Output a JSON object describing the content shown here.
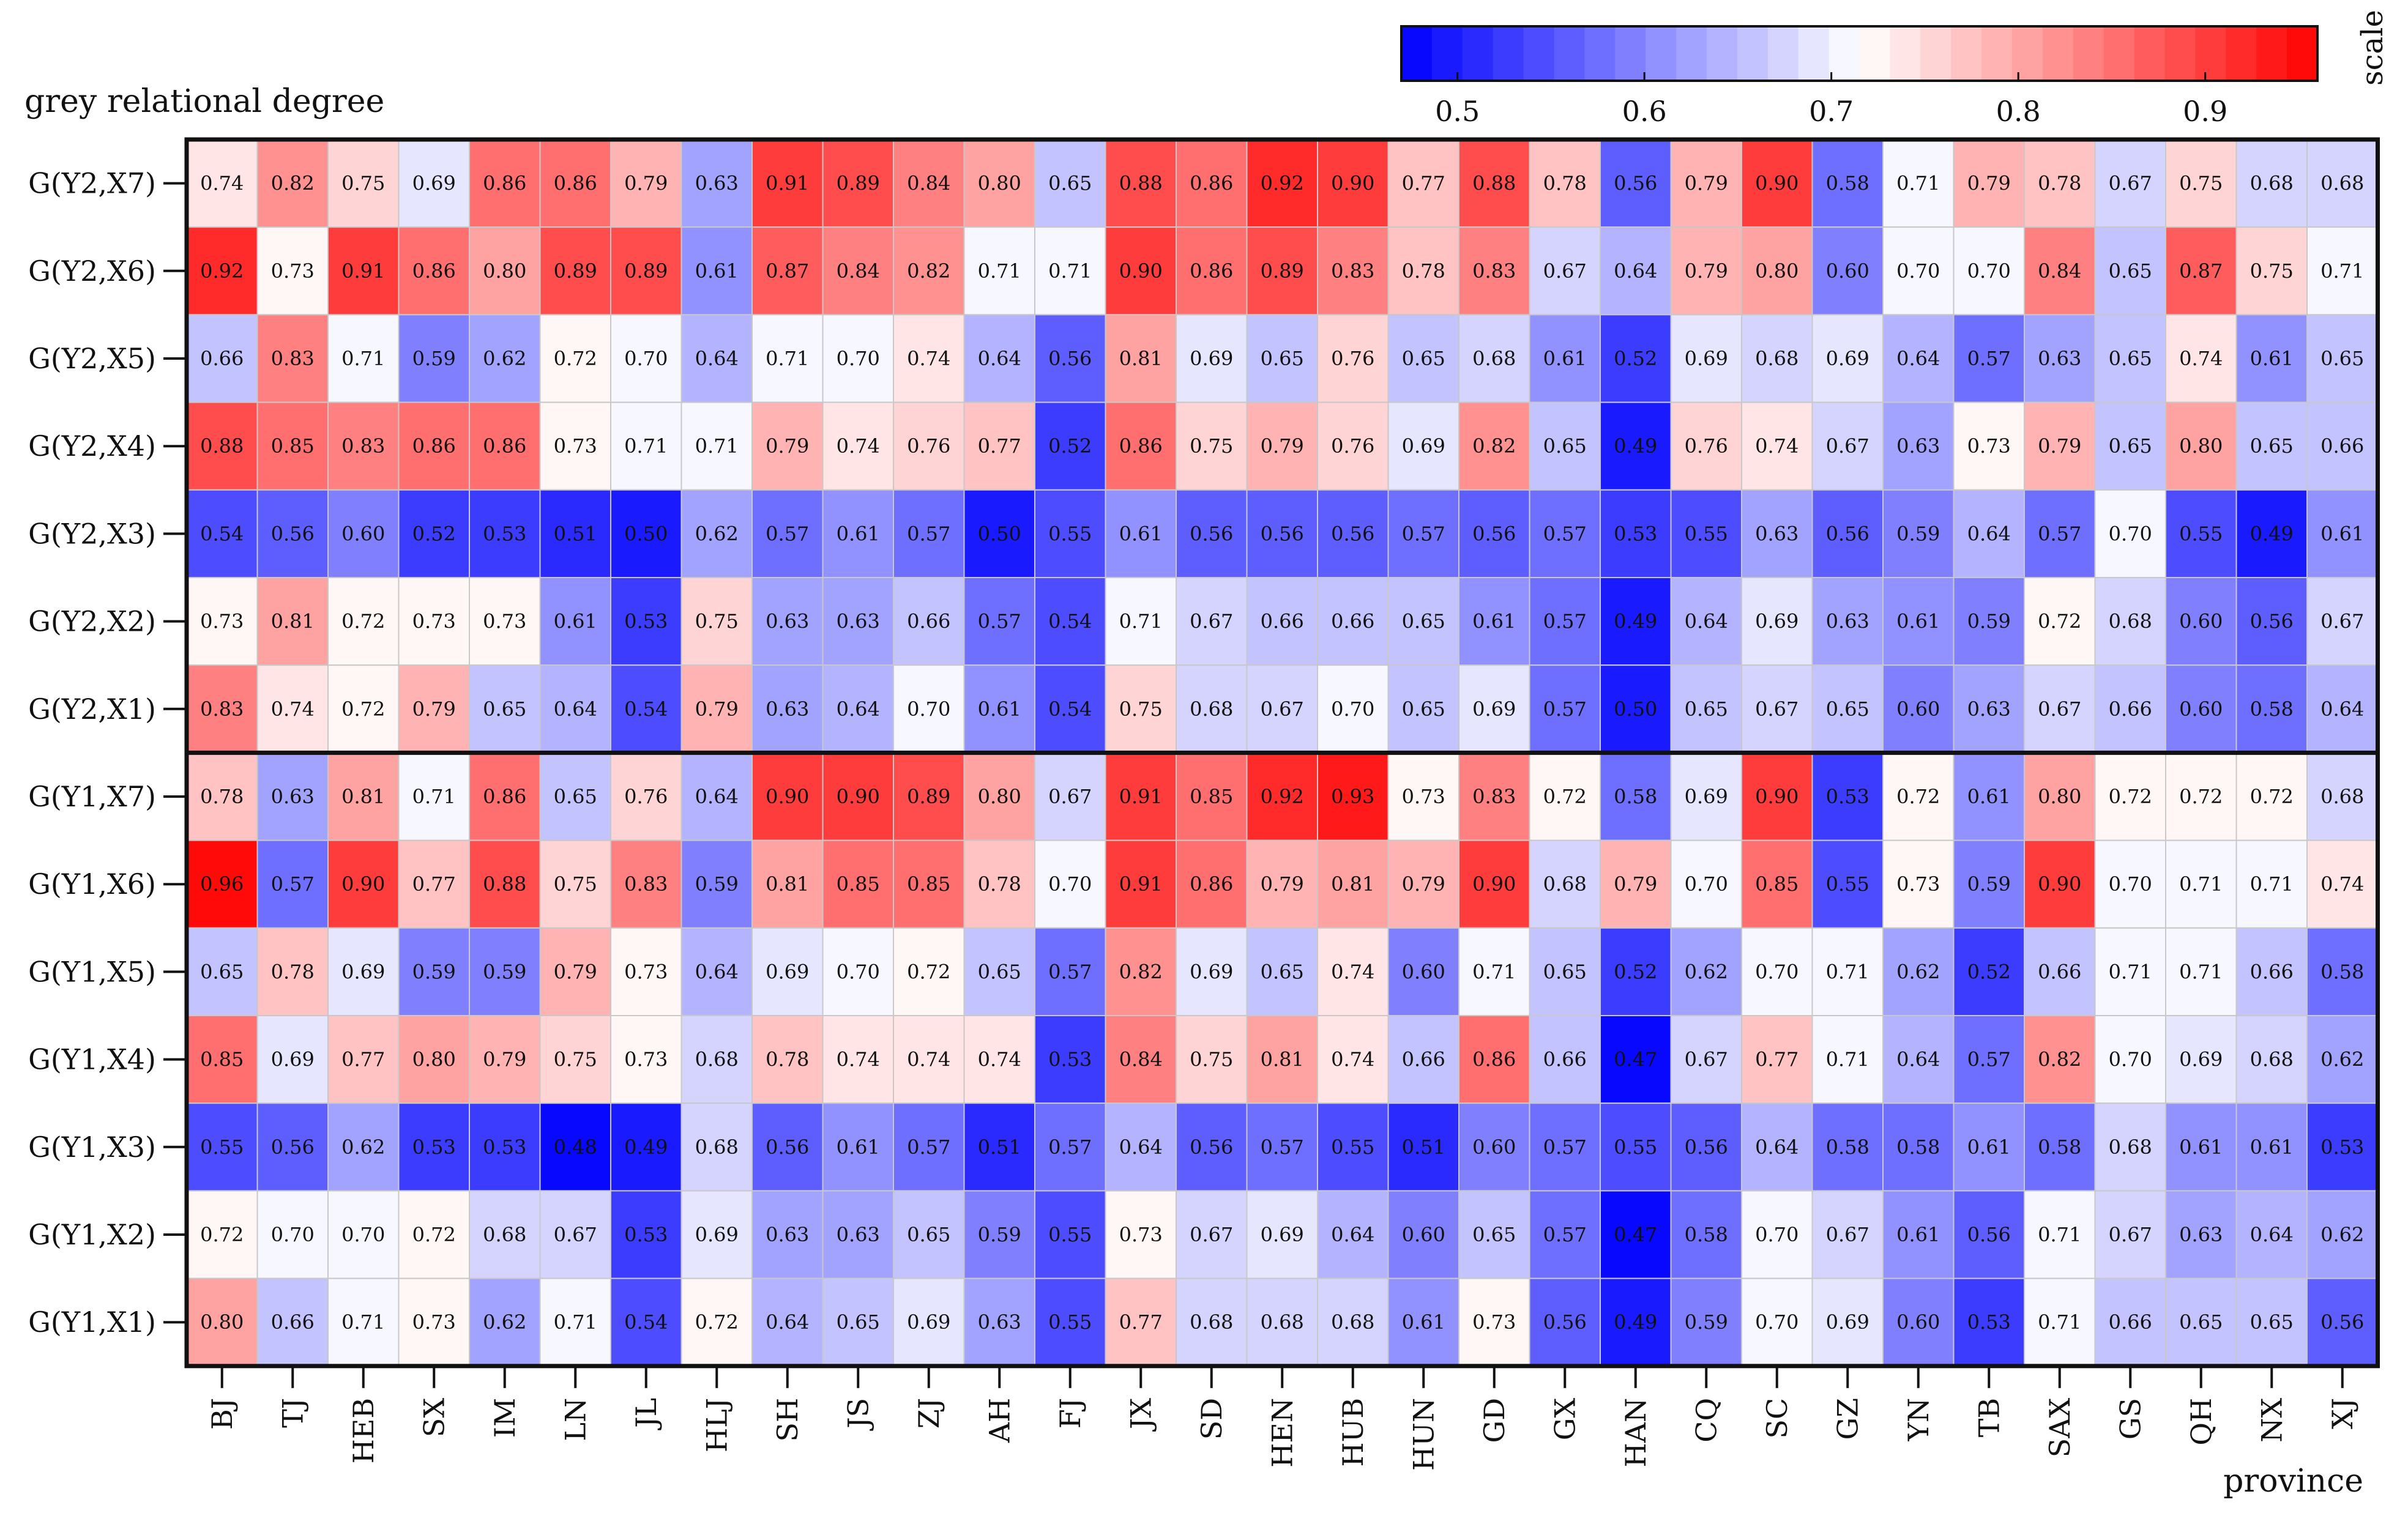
{
  "chart_data": {
    "type": "heatmap",
    "title": "grey relational degree",
    "xlabel": "province",
    "colorbar": {
      "label": "scale",
      "range": [
        0.47,
        0.96
      ],
      "ticks": [
        0.5,
        0.6,
        0.7,
        0.8,
        0.9
      ],
      "tick_labels": [
        "0.5",
        "0.6",
        "0.7",
        "0.8",
        "0.9"
      ],
      "colors": {
        "low": "#0000ff",
        "mid": "#ffffff",
        "high": "#ff0000"
      },
      "midpoint": 0.715,
      "levels": 30
    },
    "columns": [
      "BJ",
      "TJ",
      "HEB",
      "SX",
      "IM",
      "LN",
      "JL",
      "HLJ",
      "SH",
      "JS",
      "ZJ",
      "AH",
      "FJ",
      "JX",
      "SD",
      "HEN",
      "HUB",
      "HUN",
      "GD",
      "GX",
      "HAN",
      "CQ",
      "SC",
      "GZ",
      "YN",
      "TB",
      "SAX",
      "GS",
      "QH",
      "NX",
      "XJ"
    ],
    "rows": [
      "G(Y2,X7)",
      "G(Y2,X6)",
      "G(Y2,X5)",
      "G(Y2,X4)",
      "G(Y2,X3)",
      "G(Y2,X2)",
      "G(Y2,X1)",
      "G(Y1,X7)",
      "G(Y1,X6)",
      "G(Y1,X5)",
      "G(Y1,X4)",
      "G(Y1,X3)",
      "G(Y1,X2)",
      "G(Y1,X1)"
    ],
    "values": [
      [
        0.74,
        0.82,
        0.75,
        0.69,
        0.86,
        0.86,
        0.79,
        0.63,
        0.91,
        0.89,
        0.84,
        0.8,
        0.65,
        0.88,
        0.86,
        0.92,
        0.9,
        0.77,
        0.88,
        0.78,
        0.56,
        0.79,
        0.9,
        0.58,
        0.71,
        0.79,
        0.78,
        0.67,
        0.75,
        0.68,
        0.68
      ],
      [
        0.92,
        0.73,
        0.91,
        0.86,
        0.8,
        0.89,
        0.89,
        0.61,
        0.87,
        0.84,
        0.82,
        0.71,
        0.71,
        0.9,
        0.86,
        0.89,
        0.83,
        0.78,
        0.83,
        0.67,
        0.64,
        0.79,
        0.8,
        0.6,
        0.7,
        0.7,
        0.84,
        0.65,
        0.87,
        0.75,
        0.71
      ],
      [
        0.66,
        0.83,
        0.71,
        0.59,
        0.62,
        0.72,
        0.7,
        0.64,
        0.71,
        0.7,
        0.74,
        0.64,
        0.56,
        0.81,
        0.69,
        0.65,
        0.76,
        0.65,
        0.68,
        0.61,
        0.52,
        0.69,
        0.68,
        0.69,
        0.64,
        0.57,
        0.63,
        0.65,
        0.74,
        0.61,
        0.65
      ],
      [
        0.88,
        0.85,
        0.83,
        0.86,
        0.86,
        0.73,
        0.71,
        0.71,
        0.79,
        0.74,
        0.76,
        0.77,
        0.52,
        0.86,
        0.75,
        0.79,
        0.76,
        0.69,
        0.82,
        0.65,
        0.49,
        0.76,
        0.74,
        0.67,
        0.63,
        0.73,
        0.79,
        0.65,
        0.8,
        0.65,
        0.66
      ],
      [
        0.54,
        0.56,
        0.6,
        0.52,
        0.53,
        0.51,
        0.5,
        0.62,
        0.57,
        0.61,
        0.57,
        0.5,
        0.55,
        0.61,
        0.56,
        0.56,
        0.56,
        0.57,
        0.56,
        0.57,
        0.53,
        0.55,
        0.63,
        0.56,
        0.59,
        0.64,
        0.57,
        0.7,
        0.55,
        0.49,
        0.61
      ],
      [
        0.73,
        0.81,
        0.72,
        0.73,
        0.73,
        0.61,
        0.53,
        0.75,
        0.63,
        0.63,
        0.66,
        0.57,
        0.54,
        0.71,
        0.67,
        0.66,
        0.66,
        0.65,
        0.61,
        0.57,
        0.49,
        0.64,
        0.69,
        0.63,
        0.61,
        0.59,
        0.72,
        0.68,
        0.6,
        0.56,
        0.67
      ],
      [
        0.83,
        0.74,
        0.72,
        0.79,
        0.65,
        0.64,
        0.54,
        0.79,
        0.63,
        0.64,
        0.7,
        0.61,
        0.54,
        0.75,
        0.68,
        0.67,
        0.7,
        0.65,
        0.69,
        0.57,
        0.5,
        0.65,
        0.67,
        0.65,
        0.6,
        0.63,
        0.67,
        0.66,
        0.6,
        0.58,
        0.64
      ],
      [
        0.78,
        0.63,
        0.81,
        0.71,
        0.86,
        0.65,
        0.76,
        0.64,
        0.9,
        0.9,
        0.89,
        0.8,
        0.67,
        0.91,
        0.85,
        0.92,
        0.93,
        0.73,
        0.83,
        0.72,
        0.58,
        0.69,
        0.9,
        0.53,
        0.72,
        0.61,
        0.8,
        0.72,
        0.72,
        0.72,
        0.68
      ],
      [
        0.96,
        0.57,
        0.9,
        0.77,
        0.88,
        0.75,
        0.83,
        0.59,
        0.81,
        0.85,
        0.85,
        0.78,
        0.7,
        0.91,
        0.86,
        0.79,
        0.81,
        0.79,
        0.9,
        0.68,
        0.79,
        0.7,
        0.85,
        0.55,
        0.73,
        0.59,
        0.9,
        0.7,
        0.71,
        0.71,
        0.74
      ],
      [
        0.65,
        0.78,
        0.69,
        0.59,
        0.59,
        0.79,
        0.73,
        0.64,
        0.69,
        0.7,
        0.72,
        0.65,
        0.57,
        0.82,
        0.69,
        0.65,
        0.74,
        0.6,
        0.71,
        0.65,
        0.52,
        0.62,
        0.7,
        0.71,
        0.62,
        0.52,
        0.66,
        0.71,
        0.71,
        0.66,
        0.58
      ],
      [
        0.85,
        0.69,
        0.77,
        0.8,
        0.79,
        0.75,
        0.73,
        0.68,
        0.78,
        0.74,
        0.74,
        0.74,
        0.53,
        0.84,
        0.75,
        0.81,
        0.74,
        0.66,
        0.86,
        0.66,
        0.47,
        0.67,
        0.77,
        0.71,
        0.64,
        0.57,
        0.82,
        0.7,
        0.69,
        0.68,
        0.62
      ],
      [
        0.55,
        0.56,
        0.62,
        0.53,
        0.53,
        0.48,
        0.49,
        0.68,
        0.56,
        0.61,
        0.57,
        0.51,
        0.57,
        0.64,
        0.56,
        0.57,
        0.55,
        0.51,
        0.6,
        0.57,
        0.55,
        0.56,
        0.64,
        0.58,
        0.58,
        0.61,
        0.58,
        0.68,
        0.61,
        0.61,
        0.53
      ],
      [
        0.72,
        0.7,
        0.7,
        0.72,
        0.68,
        0.67,
        0.53,
        0.69,
        0.63,
        0.63,
        0.65,
        0.59,
        0.55,
        0.73,
        0.67,
        0.69,
        0.64,
        0.6,
        0.65,
        0.57,
        0.47,
        0.58,
        0.7,
        0.67,
        0.61,
        0.56,
        0.71,
        0.67,
        0.63,
        0.64,
        0.62
      ],
      [
        0.8,
        0.66,
        0.71,
        0.73,
        0.62,
        0.71,
        0.54,
        0.72,
        0.64,
        0.65,
        0.69,
        0.63,
        0.55,
        0.77,
        0.68,
        0.68,
        0.68,
        0.61,
        0.73,
        0.56,
        0.49,
        0.59,
        0.7,
        0.69,
        0.6,
        0.53,
        0.71,
        0.66,
        0.65,
        0.65,
        0.56
      ]
    ]
  }
}
